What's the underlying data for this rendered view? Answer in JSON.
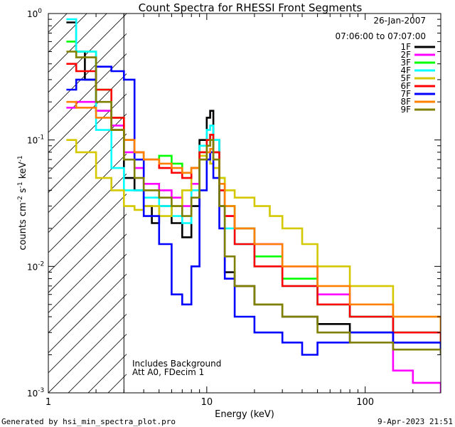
{
  "chart_data": {
    "type": "line",
    "title": "Count Spectra for RHESSI Front Segments",
    "xlabel": "Energy (keV)",
    "ylabel": "counts cm",
    "ylabel_sup1": "-2",
    "ylabel_mid": " s",
    "ylabel_sup2": "-1",
    "ylabel_end": " keV",
    "ylabel_sup3": "-1",
    "xscale": "log",
    "yscale": "log",
    "xlim": [
      1,
      300
    ],
    "ylim": [
      0.001,
      1
    ],
    "x_ticks": [
      {
        "value": 1,
        "label": "1"
      },
      {
        "value": 10,
        "label": "10"
      },
      {
        "value": 100,
        "label": "100"
      }
    ],
    "y_ticks": [
      {
        "value": 1,
        "base": "10",
        "exp": "0"
      },
      {
        "value": 0.1,
        "base": "10",
        "exp": "-1"
      },
      {
        "value": 0.01,
        "base": "10",
        "exp": "-2"
      },
      {
        "value": 0.001,
        "base": "10",
        "exp": "-3"
      }
    ],
    "excluded_region_keV": [
      1,
      3
    ],
    "date": "26-Jan-2007",
    "time_range": "07:06:00 to 07:07:00",
    "annotation_line1": "Includes Background",
    "annotation_line2": "Att A0, FDecim 1",
    "footer_left": "Generated by hsi_min_spectra_plot.pro",
    "footer_right": "9-Apr-2023 21:51",
    "legend": [
      {
        "label": "1F",
        "color": "#000000"
      },
      {
        "label": "2F",
        "color": "#ff00ff"
      },
      {
        "label": "3F",
        "color": "#00ff00"
      },
      {
        "label": "4F",
        "color": "#00ffff"
      },
      {
        "label": "5F",
        "color": "#d4c800"
      },
      {
        "label": "6F",
        "color": "#ff0000"
      },
      {
        "label": "7F",
        "color": "#0000ff"
      },
      {
        "label": "8F",
        "color": "#ff8000"
      },
      {
        "label": "9F",
        "color": "#808000"
      }
    ],
    "series": [
      {
        "name": "1F",
        "color": "#000000",
        "points": [
          [
            1.3,
            0.85
          ],
          [
            1.5,
            0.5
          ],
          [
            1.7,
            0.3
          ],
          [
            2.0,
            0.17
          ],
          [
            2.5,
            0.12
          ],
          [
            3.0,
            0.05
          ],
          [
            3.5,
            0.04
          ],
          [
            4.0,
            0.03
          ],
          [
            4.5,
            0.022
          ],
          [
            5.0,
            0.03
          ],
          [
            6.0,
            0.022
          ],
          [
            7.0,
            0.017
          ],
          [
            8.0,
            0.03
          ],
          [
            9.0,
            0.1
          ],
          [
            10.0,
            0.15
          ],
          [
            10.5,
            0.17
          ],
          [
            11.0,
            0.1
          ],
          [
            12.0,
            0.03
          ],
          [
            13.0,
            0.009
          ],
          [
            15.0,
            0.007
          ],
          [
            20.0,
            0.005
          ],
          [
            30.0,
            0.004
          ],
          [
            50.0,
            0.0035
          ],
          [
            80.0,
            0.003
          ],
          [
            150.0,
            0.0025
          ],
          [
            300.0,
            0.0022
          ]
        ]
      },
      {
        "name": "2F",
        "color": "#ff00ff",
        "points": [
          [
            1.3,
            0.18
          ],
          [
            1.5,
            0.2
          ],
          [
            2.0,
            0.17
          ],
          [
            2.5,
            0.13
          ],
          [
            3.0,
            0.08
          ],
          [
            3.5,
            0.06
          ],
          [
            4.0,
            0.045
          ],
          [
            5.0,
            0.04
          ],
          [
            6.0,
            0.035
          ],
          [
            7.0,
            0.03
          ],
          [
            8.0,
            0.045
          ],
          [
            9.0,
            0.07
          ],
          [
            10.0,
            0.1
          ],
          [
            10.5,
            0.11
          ],
          [
            11.0,
            0.08
          ],
          [
            12.0,
            0.04
          ],
          [
            13.0,
            0.025
          ],
          [
            15.0,
            0.02
          ],
          [
            20.0,
            0.015
          ],
          [
            30.0,
            0.01
          ],
          [
            50.0,
            0.006
          ],
          [
            80.0,
            0.004
          ],
          [
            150.0,
            0.0015
          ],
          [
            200.0,
            0.0012
          ],
          [
            300.0,
            0.001
          ]
        ]
      },
      {
        "name": "3F",
        "color": "#00ff00",
        "points": [
          [
            1.3,
            0.6
          ],
          [
            1.5,
            0.5
          ],
          [
            2.0,
            0.25
          ],
          [
            2.5,
            0.15
          ],
          [
            3.0,
            0.1
          ],
          [
            3.5,
            0.08
          ],
          [
            4.0,
            0.07
          ],
          [
            5.0,
            0.075
          ],
          [
            6.0,
            0.065
          ],
          [
            7.0,
            0.055
          ],
          [
            8.0,
            0.06
          ],
          [
            9.0,
            0.08
          ],
          [
            10.0,
            0.1
          ],
          [
            10.5,
            0.11
          ],
          [
            11.0,
            0.08
          ],
          [
            12.0,
            0.05
          ],
          [
            13.0,
            0.03
          ],
          [
            15.0,
            0.02
          ],
          [
            20.0,
            0.012
          ],
          [
            30.0,
            0.008
          ],
          [
            50.0,
            0.005
          ],
          [
            80.0,
            0.004
          ],
          [
            150.0,
            0.003
          ],
          [
            300.0,
            0.0025
          ]
        ]
      },
      {
        "name": "4F",
        "color": "#00ffff",
        "points": [
          [
            1.3,
            0.9
          ],
          [
            1.5,
            0.5
          ],
          [
            2.0,
            0.12
          ],
          [
            2.5,
            0.06
          ],
          [
            3.0,
            0.04
          ],
          [
            3.5,
            0.04
          ],
          [
            4.0,
            0.035
          ],
          [
            5.0,
            0.03
          ],
          [
            6.0,
            0.025
          ],
          [
            7.0,
            0.022
          ],
          [
            8.0,
            0.04
          ],
          [
            9.0,
            0.09
          ],
          [
            10.0,
            0.12
          ],
          [
            10.5,
            0.13
          ],
          [
            11.0,
            0.1
          ],
          [
            12.0,
            0.04
          ],
          [
            13.0,
            0.02
          ],
          [
            15.0,
            0.015
          ],
          [
            20.0,
            0.01
          ],
          [
            30.0,
            0.007
          ],
          [
            50.0,
            0.005
          ],
          [
            80.0,
            0.004
          ],
          [
            150.0,
            0.003
          ],
          [
            300.0,
            0.0025
          ]
        ]
      },
      {
        "name": "5F",
        "color": "#d4c800",
        "points": [
          [
            1.3,
            0.1
          ],
          [
            1.5,
            0.08
          ],
          [
            2.0,
            0.05
          ],
          [
            2.5,
            0.04
          ],
          [
            3.0,
            0.03
          ],
          [
            3.5,
            0.028
          ],
          [
            4.0,
            0.03
          ],
          [
            5.0,
            0.025
          ],
          [
            6.0,
            0.03
          ],
          [
            7.0,
            0.04
          ],
          [
            8.0,
            0.06
          ],
          [
            9.0,
            0.075
          ],
          [
            10.0,
            0.07
          ],
          [
            10.5,
            0.065
          ],
          [
            11.0,
            0.06
          ],
          [
            12.0,
            0.05
          ],
          [
            13.0,
            0.04
          ],
          [
            15.0,
            0.035
          ],
          [
            20.0,
            0.03
          ],
          [
            25.0,
            0.025
          ],
          [
            30.0,
            0.02
          ],
          [
            40.0,
            0.015
          ],
          [
            50.0,
            0.01
          ],
          [
            80.0,
            0.007
          ],
          [
            150.0,
            0.004
          ],
          [
            300.0,
            0.0025
          ]
        ]
      },
      {
        "name": "6F",
        "color": "#ff0000",
        "points": [
          [
            1.3,
            0.4
          ],
          [
            1.5,
            0.35
          ],
          [
            2.0,
            0.25
          ],
          [
            2.5,
            0.15
          ],
          [
            3.0,
            0.1
          ],
          [
            3.5,
            0.08
          ],
          [
            4.0,
            0.07
          ],
          [
            5.0,
            0.06
          ],
          [
            6.0,
            0.055
          ],
          [
            7.0,
            0.05
          ],
          [
            8.0,
            0.06
          ],
          [
            9.0,
            0.08
          ],
          [
            10.0,
            0.1
          ],
          [
            10.5,
            0.11
          ],
          [
            11.0,
            0.08
          ],
          [
            12.0,
            0.04
          ],
          [
            13.0,
            0.025
          ],
          [
            15.0,
            0.015
          ],
          [
            20.0,
            0.01
          ],
          [
            30.0,
            0.007
          ],
          [
            50.0,
            0.005
          ],
          [
            80.0,
            0.004
          ],
          [
            150.0,
            0.003
          ],
          [
            300.0,
            0.0025
          ]
        ]
      },
      {
        "name": "7F",
        "color": "#0000ff",
        "points": [
          [
            1.3,
            0.25
          ],
          [
            1.5,
            0.3
          ],
          [
            2.0,
            0.38
          ],
          [
            2.5,
            0.35
          ],
          [
            3.0,
            0.3
          ],
          [
            3.5,
            0.07
          ],
          [
            4.0,
            0.025
          ],
          [
            5.0,
            0.015
          ],
          [
            6.0,
            0.006
          ],
          [
            7.0,
            0.005
          ],
          [
            8.0,
            0.01
          ],
          [
            9.0,
            0.04
          ],
          [
            10.0,
            0.07
          ],
          [
            10.5,
            0.08
          ],
          [
            11.0,
            0.05
          ],
          [
            12.0,
            0.02
          ],
          [
            13.0,
            0.008
          ],
          [
            15.0,
            0.004
          ],
          [
            20.0,
            0.003
          ],
          [
            30.0,
            0.0025
          ],
          [
            40.0,
            0.002
          ],
          [
            50.0,
            0.0025
          ],
          [
            80.0,
            0.003
          ],
          [
            150.0,
            0.0025
          ],
          [
            300.0,
            0.002
          ]
        ]
      },
      {
        "name": "8F",
        "color": "#ff8000",
        "points": [
          [
            1.3,
            0.2
          ],
          [
            1.5,
            0.18
          ],
          [
            2.0,
            0.15
          ],
          [
            2.5,
            0.12
          ],
          [
            3.0,
            0.1
          ],
          [
            3.5,
            0.08
          ],
          [
            4.0,
            0.07
          ],
          [
            5.0,
            0.065
          ],
          [
            6.0,
            0.06
          ],
          [
            7.0,
            0.055
          ],
          [
            8.0,
            0.06
          ],
          [
            9.0,
            0.07
          ],
          [
            10.0,
            0.08
          ],
          [
            10.5,
            0.085
          ],
          [
            11.0,
            0.07
          ],
          [
            12.0,
            0.045
          ],
          [
            13.0,
            0.03
          ],
          [
            15.0,
            0.02
          ],
          [
            20.0,
            0.015
          ],
          [
            30.0,
            0.01
          ],
          [
            50.0,
            0.007
          ],
          [
            80.0,
            0.005
          ],
          [
            150.0,
            0.004
          ],
          [
            300.0,
            0.003
          ]
        ]
      },
      {
        "name": "9F",
        "color": "#808000",
        "points": [
          [
            1.3,
            0.5
          ],
          [
            1.5,
            0.45
          ],
          [
            2.0,
            0.2
          ],
          [
            2.5,
            0.12
          ],
          [
            3.0,
            0.07
          ],
          [
            3.5,
            0.05
          ],
          [
            4.0,
            0.04
          ],
          [
            5.0,
            0.035
          ],
          [
            6.0,
            0.03
          ],
          [
            7.0,
            0.025
          ],
          [
            8.0,
            0.035
          ],
          [
            9.0,
            0.07
          ],
          [
            10.0,
            0.09
          ],
          [
            10.5,
            0.1
          ],
          [
            11.0,
            0.07
          ],
          [
            12.0,
            0.03
          ],
          [
            13.0,
            0.012
          ],
          [
            15.0,
            0.007
          ],
          [
            20.0,
            0.005
          ],
          [
            30.0,
            0.004
          ],
          [
            50.0,
            0.003
          ],
          [
            80.0,
            0.0025
          ],
          [
            150.0,
            0.0022
          ],
          [
            300.0,
            0.002
          ]
        ]
      }
    ]
  }
}
